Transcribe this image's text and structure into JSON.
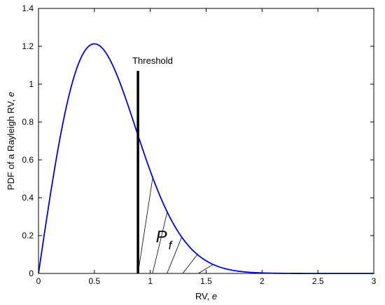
{
  "chart_data": {
    "type": "line",
    "xlabel": {
      "text": "RV, ",
      "var": "e"
    },
    "ylabel": {
      "text": "PDF of a Rayleigh RV, ",
      "var": "e"
    },
    "xlim": [
      0,
      3
    ],
    "ylim": [
      0,
      1.4
    ],
    "xticks": [
      0,
      0.5,
      1,
      1.5,
      2,
      2.5,
      3
    ],
    "xtick_labels": [
      "0",
      "0.5",
      "1",
      "1.5",
      "2",
      "2.5",
      "3"
    ],
    "yticks": [
      0,
      0.2,
      0.4,
      0.6,
      0.8,
      1,
      1.2,
      1.4
    ],
    "ytick_labels": [
      "0",
      "0.2",
      "0.4",
      "0.6",
      "0.8",
      "1",
      "1.2",
      "1.4"
    ],
    "grid": false,
    "line_color": "#0000ee",
    "threshold": {
      "x": 0.89,
      "y_top": 1.07,
      "label": "Threshold"
    },
    "shaded_region": {
      "label_main": "P",
      "label_sub": "f",
      "from_x": 0.89
    },
    "series": [
      {
        "x": [
          0,
          0.1,
          0.2,
          0.3,
          0.4,
          0.5,
          0.6,
          0.7,
          0.8,
          0.9,
          1.0,
          1.1,
          1.2,
          1.3,
          1.4,
          1.5,
          1.6,
          1.7,
          1.8,
          1.9,
          2.0,
          2.1,
          2.2,
          2.3,
          2.4,
          2.5,
          2.6,
          2.7,
          2.8,
          2.9,
          3.0
        ],
        "values": [
          0,
          0.392,
          0.738,
          0.996,
          1.163,
          1.213,
          1.168,
          1.047,
          0.883,
          0.708,
          0.541,
          0.393,
          0.273,
          0.179,
          0.111,
          0.067,
          0.037,
          0.02,
          0.01,
          0.005,
          0.002,
          0.001,
          0.0004,
          0.0002,
          0.0001,
          0,
          0,
          0,
          0,
          0,
          0
        ]
      }
    ]
  }
}
